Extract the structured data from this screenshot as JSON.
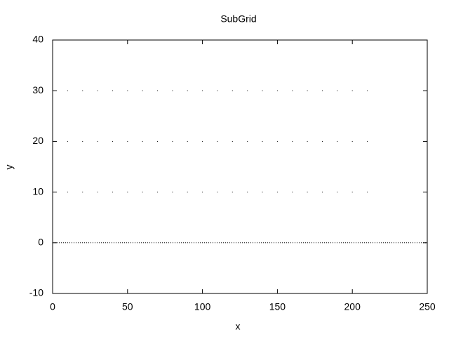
{
  "chart_data": {
    "type": "scatter",
    "title": "SubGrid",
    "x_label": "x",
    "y_label": "y",
    "x": [
      10,
      20,
      30,
      40,
      50,
      60,
      70,
      80,
      90,
      100,
      110,
      120,
      130,
      140,
      150,
      160,
      170,
      180,
      190,
      200,
      210
    ],
    "series": [
      {
        "color": "#000000",
        "values": [
          10,
          10,
          10,
          10,
          10,
          10,
          10,
          10,
          10,
          10,
          10,
          10,
          10,
          10,
          10,
          10,
          10,
          10,
          10,
          10,
          10
        ]
      },
      {
        "color": "#000000",
        "values": [
          20,
          20,
          20,
          20,
          20,
          20,
          20,
          20,
          20,
          20,
          20,
          20,
          20,
          20,
          20,
          20,
          20,
          20,
          20,
          20,
          20
        ]
      },
      {
        "color": "#000000",
        "values": [
          30,
          30,
          30,
          30,
          30,
          30,
          30,
          30,
          30,
          30,
          30,
          30,
          30,
          30,
          30,
          30,
          30,
          30,
          30,
          30,
          30
        ]
      }
    ],
    "xlim": [
      0,
      250
    ],
    "xticks": [
      0,
      50,
      100,
      150,
      200,
      250
    ],
    "ylim": [
      -10,
      40
    ],
    "yticks": [
      -10,
      0,
      10,
      20,
      30,
      40
    ],
    "zeroaxis": true
  }
}
